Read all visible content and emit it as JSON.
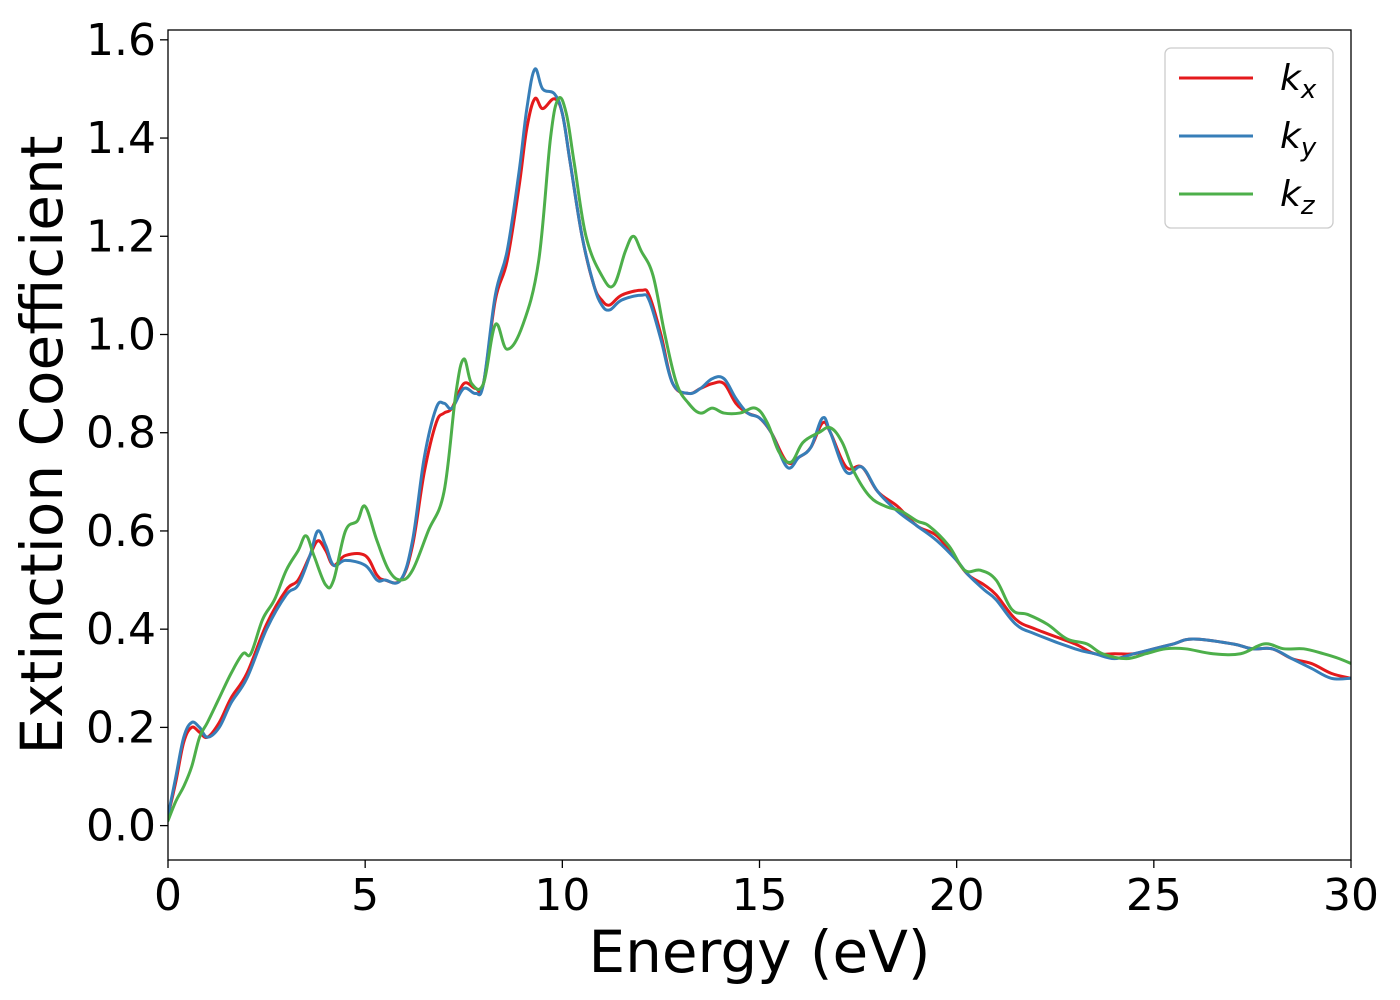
{
  "chart_data": {
    "type": "line",
    "xlabel": "Energy (eV)",
    "ylabel": "Extinction Coefficient",
    "xlim": [
      0,
      30
    ],
    "ylim": [
      -0.07,
      1.62
    ],
    "xticks": [
      0,
      5,
      10,
      15,
      20,
      25,
      30
    ],
    "xtick_labels": [
      "0",
      "5",
      "10",
      "15",
      "20",
      "25",
      "30"
    ],
    "yticks": [
      0.0,
      0.2,
      0.4,
      0.6,
      0.8,
      1.0,
      1.2,
      1.4,
      1.6
    ],
    "ytick_labels": [
      "0.0",
      "0.2",
      "0.4",
      "0.6",
      "0.8",
      "1.0",
      "1.2",
      "1.4",
      "1.6"
    ],
    "grid": false,
    "legend_position": "top-right",
    "series": [
      {
        "name": "k",
        "subscript": "x",
        "color": "#e41a1c",
        "points": [
          [
            0,
            0.02
          ],
          [
            0.2,
            0.09
          ],
          [
            0.4,
            0.17
          ],
          [
            0.6,
            0.2
          ],
          [
            0.8,
            0.19
          ],
          [
            1.0,
            0.18
          ],
          [
            1.3,
            0.21
          ],
          [
            1.6,
            0.26
          ],
          [
            2.0,
            0.31
          ],
          [
            2.5,
            0.41
          ],
          [
            3.0,
            0.48
          ],
          [
            3.3,
            0.5
          ],
          [
            3.6,
            0.55
          ],
          [
            3.8,
            0.58
          ],
          [
            4.0,
            0.56
          ],
          [
            4.2,
            0.53
          ],
          [
            4.5,
            0.55
          ],
          [
            5.0,
            0.55
          ],
          [
            5.3,
            0.51
          ],
          [
            5.5,
            0.5
          ],
          [
            5.9,
            0.5
          ],
          [
            6.2,
            0.57
          ],
          [
            6.5,
            0.72
          ],
          [
            6.8,
            0.82
          ],
          [
            7.0,
            0.84
          ],
          [
            7.2,
            0.85
          ],
          [
            7.5,
            0.9
          ],
          [
            7.8,
            0.89
          ],
          [
            8.0,
            0.9
          ],
          [
            8.3,
            1.07
          ],
          [
            8.6,
            1.15
          ],
          [
            8.9,
            1.3
          ],
          [
            9.1,
            1.42
          ],
          [
            9.3,
            1.48
          ],
          [
            9.5,
            1.46
          ],
          [
            9.8,
            1.48
          ],
          [
            10.0,
            1.45
          ],
          [
            10.2,
            1.35
          ],
          [
            10.5,
            1.2
          ],
          [
            10.8,
            1.1
          ],
          [
            11.0,
            1.07
          ],
          [
            11.2,
            1.06
          ],
          [
            11.5,
            1.08
          ],
          [
            12.0,
            1.09
          ],
          [
            12.2,
            1.08
          ],
          [
            12.5,
            1.0
          ],
          [
            12.8,
            0.9
          ],
          [
            13.2,
            0.88
          ],
          [
            13.5,
            0.89
          ],
          [
            13.8,
            0.9
          ],
          [
            14.1,
            0.9
          ],
          [
            14.4,
            0.86
          ],
          [
            14.7,
            0.84
          ],
          [
            15.0,
            0.83
          ],
          [
            15.3,
            0.8
          ],
          [
            15.7,
            0.74
          ],
          [
            16.0,
            0.75
          ],
          [
            16.3,
            0.77
          ],
          [
            16.6,
            0.82
          ],
          [
            16.8,
            0.8
          ],
          [
            17.2,
            0.73
          ],
          [
            17.6,
            0.73
          ],
          [
            18.0,
            0.68
          ],
          [
            18.5,
            0.65
          ],
          [
            19.0,
            0.61
          ],
          [
            19.5,
            0.59
          ],
          [
            20.0,
            0.54
          ],
          [
            20.3,
            0.51
          ],
          [
            20.7,
            0.49
          ],
          [
            21.0,
            0.47
          ],
          [
            21.5,
            0.42
          ],
          [
            22.0,
            0.4
          ],
          [
            23.0,
            0.37
          ],
          [
            23.5,
            0.35
          ],
          [
            24.0,
            0.35
          ],
          [
            24.5,
            0.35
          ],
          [
            25.0,
            0.36
          ],
          [
            25.5,
            0.37
          ],
          [
            26.0,
            0.38
          ],
          [
            27.0,
            0.37
          ],
          [
            27.5,
            0.36
          ],
          [
            28.0,
            0.36
          ],
          [
            28.5,
            0.34
          ],
          [
            29.0,
            0.33
          ],
          [
            29.5,
            0.31
          ],
          [
            30.0,
            0.3
          ]
        ]
      },
      {
        "name": "k",
        "subscript": "y",
        "color": "#377eb8",
        "points": [
          [
            0,
            0.02
          ],
          [
            0.2,
            0.1
          ],
          [
            0.4,
            0.18
          ],
          [
            0.6,
            0.21
          ],
          [
            0.8,
            0.2
          ],
          [
            1.0,
            0.18
          ],
          [
            1.3,
            0.2
          ],
          [
            1.6,
            0.25
          ],
          [
            2.0,
            0.3
          ],
          [
            2.5,
            0.4
          ],
          [
            3.0,
            0.47
          ],
          [
            3.3,
            0.49
          ],
          [
            3.6,
            0.55
          ],
          [
            3.8,
            0.6
          ],
          [
            4.0,
            0.57
          ],
          [
            4.2,
            0.53
          ],
          [
            4.5,
            0.54
          ],
          [
            5.0,
            0.53
          ],
          [
            5.3,
            0.5
          ],
          [
            5.5,
            0.5
          ],
          [
            5.9,
            0.5
          ],
          [
            6.2,
            0.58
          ],
          [
            6.5,
            0.75
          ],
          [
            6.8,
            0.85
          ],
          [
            7.0,
            0.86
          ],
          [
            7.2,
            0.85
          ],
          [
            7.5,
            0.89
          ],
          [
            7.8,
            0.88
          ],
          [
            8.0,
            0.9
          ],
          [
            8.3,
            1.08
          ],
          [
            8.6,
            1.17
          ],
          [
            8.9,
            1.33
          ],
          [
            9.1,
            1.46
          ],
          [
            9.3,
            1.54
          ],
          [
            9.5,
            1.5
          ],
          [
            9.8,
            1.49
          ],
          [
            10.0,
            1.45
          ],
          [
            10.2,
            1.35
          ],
          [
            10.5,
            1.2
          ],
          [
            10.8,
            1.1
          ],
          [
            11.0,
            1.06
          ],
          [
            11.2,
            1.05
          ],
          [
            11.5,
            1.07
          ],
          [
            12.0,
            1.08
          ],
          [
            12.2,
            1.07
          ],
          [
            12.5,
            0.99
          ],
          [
            12.8,
            0.9
          ],
          [
            13.2,
            0.88
          ],
          [
            13.5,
            0.89
          ],
          [
            13.8,
            0.91
          ],
          [
            14.1,
            0.91
          ],
          [
            14.4,
            0.87
          ],
          [
            14.7,
            0.84
          ],
          [
            15.0,
            0.83
          ],
          [
            15.3,
            0.8
          ],
          [
            15.7,
            0.73
          ],
          [
            16.0,
            0.75
          ],
          [
            16.3,
            0.77
          ],
          [
            16.6,
            0.83
          ],
          [
            16.8,
            0.8
          ],
          [
            17.2,
            0.72
          ],
          [
            17.6,
            0.73
          ],
          [
            18.0,
            0.68
          ],
          [
            18.5,
            0.64
          ],
          [
            19.0,
            0.61
          ],
          [
            19.5,
            0.58
          ],
          [
            20.0,
            0.54
          ],
          [
            20.3,
            0.51
          ],
          [
            20.7,
            0.48
          ],
          [
            21.0,
            0.46
          ],
          [
            21.5,
            0.41
          ],
          [
            22.0,
            0.39
          ],
          [
            23.0,
            0.36
          ],
          [
            23.5,
            0.35
          ],
          [
            24.0,
            0.34
          ],
          [
            24.5,
            0.35
          ],
          [
            25.0,
            0.36
          ],
          [
            25.5,
            0.37
          ],
          [
            26.0,
            0.38
          ],
          [
            27.0,
            0.37
          ],
          [
            27.5,
            0.36
          ],
          [
            28.0,
            0.36
          ],
          [
            28.5,
            0.34
          ],
          [
            29.0,
            0.32
          ],
          [
            29.5,
            0.3
          ],
          [
            30.0,
            0.3
          ]
        ]
      },
      {
        "name": "k",
        "subscript": "z",
        "color": "#4daf4a",
        "points": [
          [
            0,
            0.01
          ],
          [
            0.2,
            0.05
          ],
          [
            0.4,
            0.08
          ],
          [
            0.6,
            0.12
          ],
          [
            0.8,
            0.18
          ],
          [
            1.0,
            0.21
          ],
          [
            1.3,
            0.26
          ],
          [
            1.6,
            0.31
          ],
          [
            1.9,
            0.35
          ],
          [
            2.1,
            0.35
          ],
          [
            2.4,
            0.42
          ],
          [
            2.7,
            0.46
          ],
          [
            3.0,
            0.52
          ],
          [
            3.3,
            0.56
          ],
          [
            3.5,
            0.59
          ],
          [
            3.7,
            0.55
          ],
          [
            4.0,
            0.49
          ],
          [
            4.2,
            0.5
          ],
          [
            4.5,
            0.6
          ],
          [
            4.8,
            0.62
          ],
          [
            5.0,
            0.65
          ],
          [
            5.3,
            0.58
          ],
          [
            5.6,
            0.52
          ],
          [
            5.9,
            0.5
          ],
          [
            6.2,
            0.52
          ],
          [
            6.6,
            0.6
          ],
          [
            7.0,
            0.68
          ],
          [
            7.3,
            0.88
          ],
          [
            7.5,
            0.95
          ],
          [
            7.7,
            0.9
          ],
          [
            8.0,
            0.9
          ],
          [
            8.3,
            1.02
          ],
          [
            8.6,
            0.97
          ],
          [
            9.0,
            1.02
          ],
          [
            9.4,
            1.15
          ],
          [
            9.7,
            1.4
          ],
          [
            9.9,
            1.48
          ],
          [
            10.1,
            1.45
          ],
          [
            10.3,
            1.35
          ],
          [
            10.6,
            1.2
          ],
          [
            11.0,
            1.12
          ],
          [
            11.3,
            1.1
          ],
          [
            11.6,
            1.17
          ],
          [
            11.8,
            1.2
          ],
          [
            12.0,
            1.17
          ],
          [
            12.3,
            1.12
          ],
          [
            12.6,
            1.0
          ],
          [
            12.9,
            0.9
          ],
          [
            13.2,
            0.86
          ],
          [
            13.5,
            0.84
          ],
          [
            13.8,
            0.85
          ],
          [
            14.1,
            0.84
          ],
          [
            14.5,
            0.84
          ],
          [
            14.9,
            0.85
          ],
          [
            15.2,
            0.82
          ],
          [
            15.5,
            0.76
          ],
          [
            15.8,
            0.74
          ],
          [
            16.1,
            0.78
          ],
          [
            16.5,
            0.8
          ],
          [
            16.8,
            0.81
          ],
          [
            17.1,
            0.78
          ],
          [
            17.4,
            0.72
          ],
          [
            17.8,
            0.67
          ],
          [
            18.2,
            0.65
          ],
          [
            18.6,
            0.64
          ],
          [
            19.0,
            0.62
          ],
          [
            19.3,
            0.61
          ],
          [
            19.8,
            0.57
          ],
          [
            20.2,
            0.52
          ],
          [
            20.6,
            0.52
          ],
          [
            21.0,
            0.5
          ],
          [
            21.4,
            0.44
          ],
          [
            21.8,
            0.43
          ],
          [
            22.3,
            0.41
          ],
          [
            22.8,
            0.38
          ],
          [
            23.3,
            0.37
          ],
          [
            23.7,
            0.35
          ],
          [
            24.3,
            0.34
          ],
          [
            24.8,
            0.35
          ],
          [
            25.3,
            0.36
          ],
          [
            25.8,
            0.36
          ],
          [
            26.5,
            0.35
          ],
          [
            27.2,
            0.35
          ],
          [
            27.8,
            0.37
          ],
          [
            28.3,
            0.36
          ],
          [
            28.8,
            0.36
          ],
          [
            29.3,
            0.35
          ],
          [
            29.7,
            0.34
          ],
          [
            30.0,
            0.33
          ]
        ]
      }
    ]
  }
}
